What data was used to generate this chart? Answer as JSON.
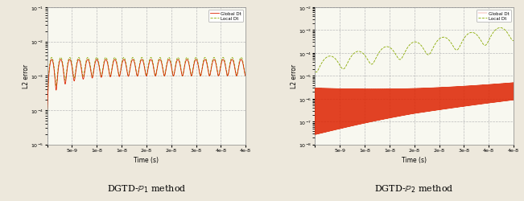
{
  "subplot1": {
    "title": "DGTD-$\\mathbb{P}_1$ method",
    "xlabel": "Time (s)",
    "ylabel": "L2 error",
    "ylim": [
      1e-05,
      0.1
    ],
    "xlim": [
      0,
      4e-08
    ],
    "xticks": [
      0,
      5e-09,
      1e-08,
      1.5e-08,
      2e-08,
      2.5e-08,
      3e-08,
      3.5e-08,
      4e-08
    ],
    "global_color": "#dd2200",
    "local_color": "#88aa00",
    "legend_global": "Global Dt",
    "legend_local": "Local Dt"
  },
  "subplot2": {
    "title": "DGTD-$\\mathbb{P}_2$ method",
    "xlabel": "Time (s)",
    "ylabel": "L2 error",
    "ylim": [
      1e-08,
      0.01
    ],
    "xlim": [
      0,
      4e-08
    ],
    "xticks": [
      0,
      5e-09,
      1e-08,
      1.5e-08,
      2e-08,
      2.5e-08,
      3e-08,
      3.5e-08,
      4e-08
    ],
    "global_color": "#dd2200",
    "local_color": "#88aa00",
    "legend_global": "Global Dt",
    "legend_local": "Local Dt"
  },
  "bg_color": "#f8f8f0",
  "grid_color": "#bbbbbb",
  "fig_bg": "#ede8dc"
}
